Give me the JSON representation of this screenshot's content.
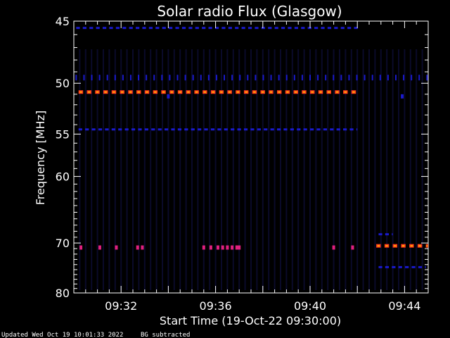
{
  "chart_data": {
    "type": "heatmap",
    "title": "Solar radio Flux (Glasgow)",
    "xlabel": "Start Time (19-Oct-22 09:30:00)",
    "ylabel": "Frequency [MHz]",
    "xlim_minutes": [
      0.0,
      15.0
    ],
    "ylim": [
      45,
      80
    ],
    "y_scale": "reciprocal",
    "x_ticks": [
      {
        "minute": 2,
        "label": "09:32"
      },
      {
        "minute": 6,
        "label": "09:36"
      },
      {
        "minute": 10,
        "label": "09:40"
      },
      {
        "minute": 14,
        "label": "09:44"
      }
    ],
    "y_ticks": [
      45,
      50,
      55,
      60,
      70,
      80
    ],
    "colors": {
      "background": "#000000",
      "faint": "#0a0a2a",
      "low": "#1a1acc",
      "mid": "#e0207f",
      "high": "#ff3b1e",
      "peak": "#ffb000"
    },
    "bands": [
      {
        "freq": 45.5,
        "start": 0.1,
        "end": 12.1,
        "level": "low",
        "style": "dashed"
      },
      {
        "freq": 49.5,
        "start": 0.1,
        "end": 15.0,
        "level": "low",
        "style": "ticks"
      },
      {
        "freq": 50.8,
        "start": 0.2,
        "end": 12.0,
        "level": "high",
        "style": "dashed"
      },
      {
        "freq": 54.5,
        "start": 0.2,
        "end": 12.0,
        "level": "low",
        "style": "dashed"
      },
      {
        "freq": 70.5,
        "start": 12.8,
        "end": 15.0,
        "level": "high",
        "style": "dashed"
      },
      {
        "freq": 68.5,
        "start": 12.9,
        "end": 13.5,
        "level": "low",
        "style": "dashed"
      },
      {
        "freq": 74.5,
        "start": 12.9,
        "end": 14.9,
        "level": "low",
        "style": "dashed"
      }
    ],
    "spots": [
      {
        "minute": 0.3,
        "freq": 70.8,
        "level": "mid"
      },
      {
        "minute": 1.1,
        "freq": 70.8,
        "level": "mid"
      },
      {
        "minute": 1.8,
        "freq": 70.8,
        "level": "mid"
      },
      {
        "minute": 2.7,
        "freq": 70.8,
        "level": "mid"
      },
      {
        "minute": 2.9,
        "freq": 70.8,
        "level": "mid"
      },
      {
        "minute": 5.5,
        "freq": 70.8,
        "level": "mid"
      },
      {
        "minute": 5.8,
        "freq": 70.8,
        "level": "mid"
      },
      {
        "minute": 6.1,
        "freq": 70.8,
        "level": "mid"
      },
      {
        "minute": 6.3,
        "freq": 70.8,
        "level": "mid"
      },
      {
        "minute": 6.5,
        "freq": 70.8,
        "level": "mid"
      },
      {
        "minute": 6.7,
        "freq": 70.8,
        "level": "mid"
      },
      {
        "minute": 6.9,
        "freq": 70.8,
        "level": "mid"
      },
      {
        "minute": 7.0,
        "freq": 70.8,
        "level": "mid"
      },
      {
        "minute": 11.0,
        "freq": 70.8,
        "level": "mid"
      },
      {
        "minute": 11.8,
        "freq": 70.8,
        "level": "mid"
      },
      {
        "minute": 4.0,
        "freq": 51.2,
        "level": "low"
      },
      {
        "minute": 13.9,
        "freq": 51.2,
        "level": "low"
      }
    ]
  },
  "footer": {
    "updated": "Updated Wed Oct 19 10:01:33 2022",
    "note": "BG subtracted"
  }
}
